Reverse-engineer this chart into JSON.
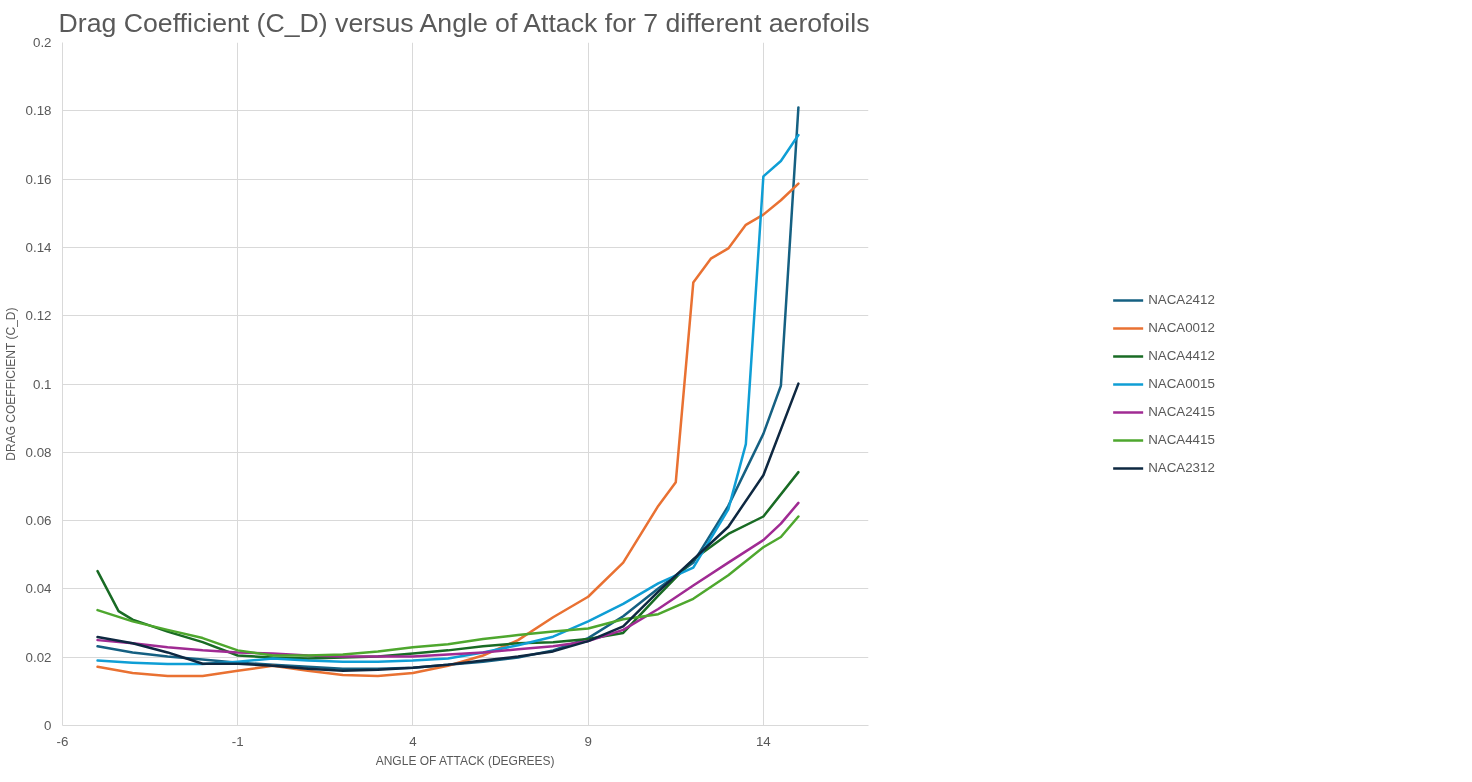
{
  "chart_data": {
    "type": "line",
    "title": "Drag Coefficient (C_D) versus Angle of Attack for 7 different aerofoils",
    "xlabel": "ANGLE OF ATTACK (DEGREES)",
    "ylabel": "DRAG COEFFICIENT (C_D)",
    "xlim": [
      -6,
      17
    ],
    "xticks": [
      -6,
      -1,
      4,
      9,
      14
    ],
    "ylim": [
      0,
      0.2
    ],
    "yticks": [
      0,
      0.02,
      0.04,
      0.06,
      0.08,
      0.1,
      0.12,
      0.14,
      0.16,
      0.18,
      0.2
    ],
    "grid": true,
    "legend": "right",
    "marker": "none",
    "line_style": "solid",
    "series": [
      {
        "name": "NACA2412",
        "color": "#156082",
        "x": [
          -5,
          -4,
          -3,
          -2,
          -1,
          0,
          1,
          2,
          3,
          4,
          5,
          6,
          7,
          8,
          9,
          10,
          11,
          12,
          13,
          14,
          14.5,
          15
        ],
        "values": [
          0.0232,
          0.0214,
          0.0202,
          0.0193,
          0.0184,
          0.0178,
          0.0172,
          0.0166,
          0.0166,
          0.0169,
          0.0178,
          0.0187,
          0.0199,
          0.022,
          0.0256,
          0.032,
          0.0401,
          0.0477,
          0.0643,
          0.0854,
          0.0995,
          0.181
        ]
      },
      {
        "name": "NACA0012",
        "color": "#e97132",
        "x": [
          -5,
          -4,
          -3,
          -2,
          -1,
          0,
          1,
          2,
          3,
          4,
          5,
          6,
          7,
          8,
          9,
          10,
          11,
          11.5,
          12,
          12.5,
          13,
          13.5,
          14,
          14.5,
          15
        ],
        "values": [
          0.0172,
          0.0154,
          0.0145,
          0.0145,
          0.016,
          0.0175,
          0.016,
          0.0148,
          0.0145,
          0.0154,
          0.0175,
          0.0205,
          0.025,
          0.0317,
          0.0377,
          0.0477,
          0.0643,
          0.0712,
          0.1297,
          0.1367,
          0.1397,
          0.1466,
          0.1496,
          0.1538,
          0.1587
        ]
      },
      {
        "name": "NACA4412",
        "color": "#196b24",
        "x": [
          -5,
          -4.4,
          -4,
          -3,
          -2,
          -1,
          0,
          1,
          2,
          3,
          4,
          5,
          6,
          7,
          8,
          9,
          10,
          11,
          12,
          13,
          14,
          15
        ],
        "values": [
          0.0452,
          0.0335,
          0.031,
          0.0275,
          0.0244,
          0.0205,
          0.0199,
          0.0196,
          0.0199,
          0.0202,
          0.0211,
          0.022,
          0.0232,
          0.0241,
          0.0244,
          0.0253,
          0.0271,
          0.038,
          0.0486,
          0.0561,
          0.0612,
          0.0742
        ]
      },
      {
        "name": "NACA0015",
        "color": "#0f9ed5",
        "x": [
          -5,
          -4,
          -3,
          -2,
          -1,
          0,
          1,
          2,
          3,
          4,
          5,
          6,
          7,
          8,
          9,
          10,
          11,
          12,
          13,
          13.5,
          14,
          14.5,
          15
        ],
        "values": [
          0.019,
          0.0184,
          0.018,
          0.018,
          0.0187,
          0.0196,
          0.019,
          0.0187,
          0.0187,
          0.019,
          0.0196,
          0.0214,
          0.0235,
          0.026,
          0.0305,
          0.0356,
          0.0416,
          0.0462,
          0.0633,
          0.0824,
          0.1608,
          0.1653,
          0.1729
        ]
      },
      {
        "name": "NACA2415",
        "color": "#a02b93",
        "x": [
          -5,
          -4,
          -3,
          -2,
          -1,
          0,
          1,
          2,
          3,
          4,
          5,
          6,
          7,
          8,
          9,
          10,
          11,
          12,
          13,
          14,
          14.5,
          15
        ],
        "values": [
          0.025,
          0.0241,
          0.0229,
          0.022,
          0.0214,
          0.0211,
          0.0205,
          0.0202,
          0.0202,
          0.0202,
          0.0208,
          0.0214,
          0.0223,
          0.0232,
          0.0247,
          0.028,
          0.0341,
          0.041,
          0.0477,
          0.0543,
          0.0591,
          0.0652
        ]
      },
      {
        "name": "NACA4415",
        "color": "#4ea72e",
        "x": [
          -5,
          -4,
          -3,
          -2,
          -1,
          0,
          1,
          2,
          3,
          4,
          5,
          6,
          7,
          8,
          9,
          10,
          11,
          12,
          13,
          14,
          14.5,
          15
        ],
        "values": [
          0.0338,
          0.0305,
          0.028,
          0.0256,
          0.022,
          0.0205,
          0.0205,
          0.0208,
          0.0217,
          0.0229,
          0.0238,
          0.0253,
          0.0265,
          0.0275,
          0.0284,
          0.0311,
          0.0326,
          0.0371,
          0.044,
          0.0522,
          0.0552,
          0.0612
        ]
      },
      {
        "name": "NACA2312",
        "color": "#0e2841",
        "x": [
          -5,
          -4,
          -3,
          -2,
          -1,
          0,
          1,
          2,
          3,
          4,
          5,
          6,
          7,
          8,
          9,
          10,
          11,
          12,
          13,
          14,
          15
        ],
        "values": [
          0.0259,
          0.0241,
          0.0214,
          0.0181,
          0.0181,
          0.0175,
          0.0166,
          0.016,
          0.0163,
          0.0169,
          0.0178,
          0.019,
          0.0202,
          0.0217,
          0.0247,
          0.029,
          0.0392,
          0.0486,
          0.0582,
          0.0733,
          0.1001
        ]
      }
    ]
  }
}
